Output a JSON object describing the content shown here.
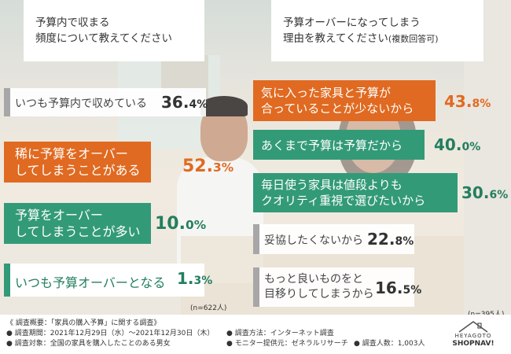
{
  "left": {
    "question": [
      "予算内で収まる",
      "頻度について教えてください"
    ],
    "answers": [
      {
        "text": [
          "いつも予算内で収めている"
        ],
        "pct_int": "36.",
        "pct_dec": "4",
        "pct_sign": "%",
        "style": "gray"
      },
      {
        "text": [
          "稀に予算をオーバー",
          "してしまうことがある"
        ],
        "pct_int": "52.",
        "pct_dec": "3",
        "pct_sign": "%",
        "style": "orange"
      },
      {
        "text": [
          "予算をオーバー",
          "してしまうことが多い"
        ],
        "pct_int": "10.",
        "pct_dec": "0",
        "pct_sign": "%",
        "style": "green"
      },
      {
        "text": [
          "いつも予算オーバーとなる"
        ],
        "pct_int": "1.",
        "pct_dec": "3",
        "pct_sign": "%",
        "style": "green"
      }
    ],
    "n_label": "(n=622人)"
  },
  "right": {
    "question": [
      "予算オーバーになってしまう",
      "理由を教えてください"
    ],
    "question_note": "(複数回答可)",
    "answers": [
      {
        "text": [
          "気に入った家具と予算が",
          "合っていることが少ないから"
        ],
        "pct_int": "43.",
        "pct_dec": "8",
        "pct_sign": "%",
        "style": "orange"
      },
      {
        "text": [
          "あくまで予算は予算だから"
        ],
        "pct_int": "40.",
        "pct_dec": "0",
        "pct_sign": "%",
        "style": "green"
      },
      {
        "text": [
          "毎日使う家具は値段よりも",
          "クオリティ重視で選びたいから"
        ],
        "pct_int": "30.",
        "pct_dec": "6",
        "pct_sign": "%",
        "style": "green"
      },
      {
        "text": [
          "妥協したくないから"
        ],
        "pct_int": "22.",
        "pct_dec": "8",
        "pct_sign": "%",
        "style": "gray"
      },
      {
        "text": [
          "もっと良いものをと",
          "目移りしてしまうから"
        ],
        "pct_int": "16.",
        "pct_dec": "5",
        "pct_sign": "%",
        "style": "gray"
      }
    ],
    "n_label": "(n=395人)"
  },
  "footer": {
    "summary": "《 調査概要：「家具の購入予算」に関する調査》",
    "period": "● 調査期間：2021年12月29日（水）〜2021年12月30日（木）",
    "target": "● 調査対象：全国の家具を購入したことのある男女",
    "method": "● 調査方法：インターネット調査",
    "provider": "● モニター提供元：ゼネラルリサーチ",
    "count": "● 調査人数：1,003人"
  },
  "logo": {
    "top": "HEYAGOTO",
    "bottom": "SHOPNAV!"
  },
  "colors": {
    "orange": "#e06a21",
    "green": "#339a78",
    "dark_green": "#237e5f",
    "gray_accent": "#a7a7a7"
  }
}
